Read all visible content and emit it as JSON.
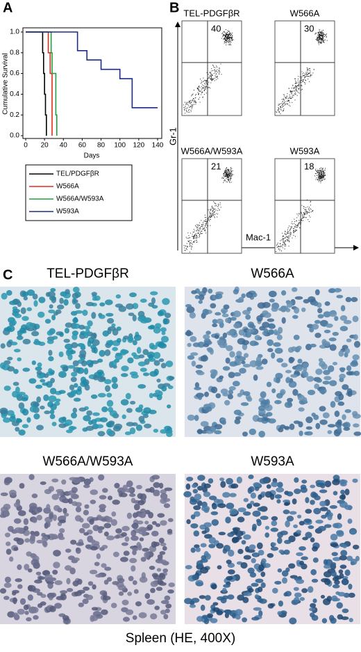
{
  "panel_labels": [
    "A",
    "B",
    "C"
  ],
  "chart_data": {
    "type": "line",
    "step": true,
    "x_label": "Days",
    "y_label": "Cumulative Survival",
    "xlim": [
      0,
      140
    ],
    "xticks": [
      0,
      20,
      40,
      60,
      80,
      100,
      120,
      140
    ],
    "ylim": [
      0,
      1.0
    ],
    "yticks": [
      {
        "value": 0,
        "label": "0.0"
      },
      0.2,
      0.4,
      0.6,
      0.8,
      {
        "value": 1.0,
        "label": "1.0"
      }
    ],
    "legend": "below",
    "series": [
      {
        "name": "TEL/PDGFβR",
        "color": "#000000",
        "x": [
          0,
          18,
          19,
          20,
          21,
          22
        ],
        "values": [
          1.0,
          0.8,
          0.6,
          0.4,
          0.2,
          0
        ]
      },
      {
        "name": "W566A",
        "color": "#e8281e",
        "x": [
          0,
          24,
          26,
          28
        ],
        "values": [
          1.0,
          0.8,
          0.6,
          0
        ]
      },
      {
        "name": "W566A/W593A",
        "color": "#1aa23a",
        "x": [
          0,
          27,
          28,
          32,
          33
        ],
        "values": [
          1.0,
          0.8,
          0.6,
          0.2,
          0
        ]
      },
      {
        "name": "W593A",
        "color": "#1c2a8a",
        "x": [
          0,
          55,
          65,
          80,
          100,
          113,
          140
        ],
        "values": [
          1.0,
          0.82,
          0.73,
          0.64,
          0.55,
          0.27,
          0.27
        ]
      }
    ]
  },
  "flow_cytometry": {
    "y_label": "Gr-1",
    "x_label": "Mac-1",
    "plots": [
      {
        "title": "TEL-PDGFβR",
        "percent": "40"
      },
      {
        "title": "W566A",
        "percent": "30"
      },
      {
        "title": "W566A/W593A",
        "percent": "21"
      },
      {
        "title": "W593A",
        "percent": "18"
      }
    ]
  },
  "histology": {
    "caption": "Spleen (HE, 400X)",
    "images": [
      {
        "title": "TEL-PDGFβR"
      },
      {
        "title": "W566A"
      },
      {
        "title": "W566A/W593A"
      },
      {
        "title": "W593A"
      }
    ]
  }
}
